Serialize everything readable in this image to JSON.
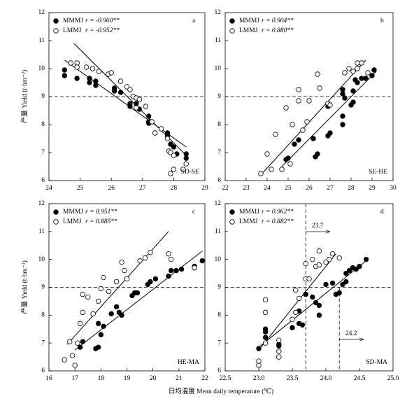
{
  "x_label": "日均温度 Mean daily temperature (℃)",
  "chart_data": [
    {
      "type": "scatter",
      "label": "a",
      "site": "SD-SE",
      "y_label": "产量 Yield (t·hm⁻²)",
      "xlim": [
        24,
        29
      ],
      "xticks": [
        24,
        25,
        26,
        27,
        28,
        29
      ],
      "ylim": [
        6,
        12
      ],
      "yticks": [
        6,
        7,
        8,
        9,
        10,
        11,
        12
      ],
      "hline": 9,
      "series": [
        {
          "name": "MMMJ",
          "stat": "r = -0.960**",
          "marker": "filled",
          "color": "#000000",
          "x": [
            24.5,
            24.5,
            24.9,
            25.3,
            25.3,
            25.5,
            25.5,
            26.1,
            26.1,
            26.3,
            26.6,
            26.6,
            26.8,
            26.9,
            27.2,
            27.2,
            27.2,
            27.8,
            27.8,
            27.9,
            28.0,
            28.1,
            28.4,
            28.4
          ],
          "y": [
            9.95,
            9.75,
            9.65,
            9.65,
            9.5,
            9.4,
            9.55,
            9.3,
            9.2,
            9.15,
            8.75,
            8.65,
            8.75,
            8.55,
            8.3,
            8.05,
            8.1,
            7.7,
            7.6,
            7.3,
            7.2,
            6.95,
            6.95,
            6.8
          ],
          "fit": {
            "x": [
              24.5,
              28.4
            ],
            "y": [
              10.3,
              7.2
            ]
          }
        },
        {
          "name": "LMMJ",
          "stat": "r = -0.952**",
          "marker": "open",
          "color": "#000000",
          "x": [
            24.7,
            24.9,
            24.9,
            25.2,
            25.4,
            25.6,
            25.9,
            26.0,
            26.3,
            26.5,
            26.6,
            26.7,
            26.8,
            26.9,
            26.8,
            27.1,
            27.3,
            27.4,
            27.6,
            27.8,
            27.85,
            27.9,
            28.0,
            28.0,
            27.9,
            28.3,
            28.4
          ],
          "y": [
            10.2,
            10.2,
            10.05,
            10.05,
            10.0,
            9.9,
            9.8,
            9.85,
            9.55,
            9.35,
            9.25,
            9.0,
            8.95,
            8.9,
            8.6,
            8.65,
            8.1,
            7.7,
            7.85,
            7.5,
            7.05,
            7.0,
            6.9,
            6.4,
            6.25,
            6.4,
            6.6
          ],
          "fit": {
            "x": [
              24.8,
              28.4
            ],
            "y": [
              10.9,
              6.9
            ]
          }
        }
      ]
    },
    {
      "type": "scatter",
      "label": "b",
      "site": "SE-HE",
      "xlim": [
        22,
        30
      ],
      "xticks": [
        22,
        23,
        24,
        25,
        26,
        27,
        28,
        29,
        30
      ],
      "ylim": [
        6,
        12
      ],
      "yticks": [
        6,
        7,
        8,
        9,
        10,
        11,
        12
      ],
      "hline": 9,
      "series": [
        {
          "name": "MMMJ",
          "stat": "r = 0.904**",
          "marker": "filled",
          "color": "#000000",
          "x": [
            24.9,
            25.0,
            25.3,
            25.5,
            26.2,
            26.3,
            26.4,
            26.9,
            27.0,
            26.9,
            27.6,
            27.6,
            27.7,
            27.6,
            28.0,
            28.1,
            28.2,
            28.3,
            28.5,
            28.7,
            29.0,
            29.1,
            27.6,
            28.1
          ],
          "y": [
            6.75,
            6.8,
            7.3,
            7.45,
            7.5,
            6.85,
            6.95,
            7.6,
            7.7,
            8.65,
            8.0,
            8.3,
            8.95,
            9.25,
            8.7,
            8.8,
            9.6,
            9.5,
            9.65,
            9.65,
            9.75,
            9.95,
            9.1,
            9.2
          ],
          "fit": {
            "x": [
              24.7,
              29.2
            ],
            "y": [
              6.5,
              9.9
            ]
          }
        },
        {
          "name": "LMMJ",
          "stat": "r = 0.880**",
          "marker": "open",
          "color": "#000000",
          "x": [
            23.7,
            24.0,
            24.2,
            24.4,
            24.7,
            24.9,
            25.1,
            25.2,
            25.5,
            25.5,
            25.7,
            25.9,
            26.0,
            26.4,
            26.5,
            26.9,
            27.0,
            27.7,
            27.9,
            28.1,
            28.3,
            28.5,
            28.8,
            28.3
          ],
          "y": [
            6.25,
            6.95,
            6.4,
            7.65,
            6.4,
            8.6,
            6.6,
            8.0,
            9.25,
            8.85,
            7.8,
            8.1,
            8.85,
            9.8,
            9.3,
            8.75,
            8.7,
            9.85,
            10.0,
            9.9,
            10.2,
            10.2,
            9.85,
            10.0
          ],
          "fit": {
            "x": [
              23.7,
              28.7
            ],
            "y": [
              6.2,
              10.3
            ]
          }
        }
      ]
    },
    {
      "type": "scatter",
      "label": "c",
      "site": "HE-MA",
      "y_label": "产量 Yield (t·hm⁻²)",
      "xlim": [
        16,
        22
      ],
      "xticks": [
        16,
        17,
        18,
        19,
        20,
        21,
        22
      ],
      "ylim": [
        6,
        12
      ],
      "yticks": [
        6,
        7,
        8,
        9,
        10,
        11,
        12
      ],
      "hline": 9,
      "series": [
        {
          "name": "MMMJ",
          "stat": "r = 0.951**",
          "marker": "filled",
          "color": "#000000",
          "x": [
            17.2,
            17.3,
            17.8,
            17.9,
            17.9,
            18.0,
            18.1,
            18.4,
            18.6,
            18.7,
            18.8,
            19.2,
            19.3,
            19.4,
            19.8,
            19.9,
            20.1,
            20.6,
            20.7,
            20.9,
            21.1,
            21.6,
            21.6,
            21.9
          ],
          "y": [
            6.85,
            7.05,
            6.8,
            6.85,
            7.7,
            7.3,
            7.6,
            8.05,
            8.3,
            8.1,
            8.0,
            8.7,
            8.8,
            8.8,
            9.1,
            9.2,
            9.3,
            9.4,
            9.6,
            9.6,
            9.65,
            9.75,
            9.7,
            9.95
          ],
          "fit": {
            "x": [
              17.0,
              21.9
            ],
            "y": [
              6.75,
              10.3
            ]
          }
        },
        {
          "name": "LMMJ",
          "stat": "r = 0.885**",
          "marker": "open",
          "color": "#000000",
          "x": [
            16.6,
            16.8,
            16.9,
            17.0,
            17.1,
            17.2,
            17.3,
            17.3,
            17.5,
            17.7,
            17.9,
            18.0,
            18.1,
            18.3,
            18.6,
            18.8,
            18.9,
            19.0,
            19.5,
            19.7,
            19.9,
            20.6,
            20.7,
            21.6
          ],
          "y": [
            6.4,
            7.05,
            6.55,
            6.2,
            7.0,
            7.7,
            8.1,
            8.75,
            8.65,
            8.05,
            8.5,
            8.95,
            9.35,
            8.85,
            9.2,
            9.9,
            9.6,
            9.3,
            9.95,
            10.05,
            10.25,
            10.2,
            10.0,
            9.7
          ],
          "fit": {
            "x": [
              16.7,
              20.6
            ],
            "y": [
              6.95,
              11.0
            ]
          }
        }
      ]
    },
    {
      "type": "scatter",
      "label": "d",
      "site": "SD-MA",
      "xlim": [
        22.5,
        25.0
      ],
      "xticks": [
        22.5,
        {
          "value": 23,
          "label": "23.0"
        },
        23.5,
        {
          "value": 24,
          "label": "24.0"
        },
        24.5,
        {
          "value": 25,
          "label": "25.0"
        }
      ],
      "ylim": [
        6,
        12
      ],
      "yticks": [
        6,
        7,
        8,
        9,
        10,
        11,
        12
      ],
      "hline": 9,
      "vlines": [
        23.7,
        24.2
      ],
      "series": [
        {
          "name": "MMMJ",
          "stat": "r = 0.962**",
          "marker": "filled",
          "color": "#000000",
          "x": [
            23.0,
            23.1,
            23.1,
            23.1,
            23.3,
            23.3,
            23.5,
            23.6,
            23.65,
            23.6,
            23.7,
            23.8,
            23.85,
            23.9,
            23.9,
            24.0,
            24.1,
            24.15,
            24.2,
            24.25,
            24.3,
            24.3,
            24.35,
            24.4,
            24.45,
            24.5,
            24.6
          ],
          "y": [
            6.8,
            7.2,
            7.4,
            7.5,
            6.9,
            6.95,
            7.55,
            7.7,
            7.65,
            8.15,
            8.75,
            8.65,
            8.45,
            8.0,
            8.35,
            9.1,
            9.15,
            8.75,
            8.8,
            9.1,
            9.2,
            9.5,
            9.6,
            9.7,
            9.65,
            9.75,
            10.0
          ],
          "fit": {
            "x": [
              23.0,
              24.6
            ],
            "y": [
              6.85,
              9.95
            ]
          }
        },
        {
          "name": "LMMJ",
          "stat": "r = 0.882**",
          "marker": "open",
          "color": "#000000",
          "x": [
            23.0,
            23.0,
            23.1,
            23.1,
            23.1,
            23.3,
            23.3,
            23.3,
            23.5,
            23.55,
            23.55,
            23.6,
            23.7,
            23.7,
            23.75,
            23.8,
            23.85,
            23.9,
            23.9,
            24.0,
            24.05,
            24.1,
            24.2
          ],
          "y": [
            6.2,
            6.35,
            7.0,
            8.1,
            8.55,
            6.5,
            6.7,
            7.1,
            7.85,
            8.1,
            8.9,
            8.6,
            9.3,
            9.85,
            9.3,
            10.0,
            9.75,
            10.3,
            9.8,
            9.9,
            10.0,
            10.2,
            10.05
          ],
          "fit": {
            "x": [
              23.0,
              24.15
            ],
            "y": [
              6.75,
              10.2
            ]
          }
        }
      ]
    }
  ]
}
